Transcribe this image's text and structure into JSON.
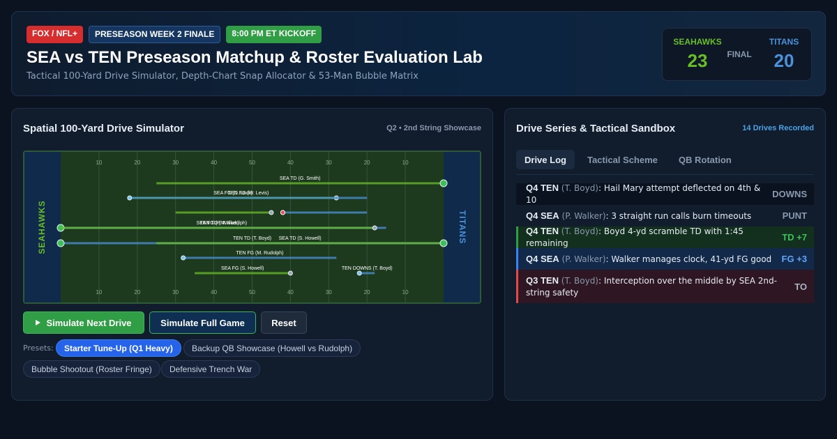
{
  "header": {
    "badges": [
      "FOX / NFL+",
      "PRESEASON WEEK 2 FINALE",
      "8:00 PM ET KICKOFF"
    ],
    "title": "SEA vs TEN Preseason Matchup & Roster Evaluation Lab",
    "subtitle": "Tactical 100-Yard Drive Simulator, Depth-Chart Snap Allocator & 53-Man Bubble Matrix"
  },
  "scoreboard": {
    "home_team": "SEAHAWKS",
    "home_score": "23",
    "status": "FINAL",
    "away_team": "TITANS",
    "away_score": "20",
    "home_color": "#69be28",
    "away_color": "#4b92db"
  },
  "simulator": {
    "title": "Spatial 100-Yard Drive Simulator",
    "meta": "Q2 • 2nd String Showcase",
    "left_endzone": "SEAHAWKS",
    "right_endzone": "TITANS",
    "yard_labels": [
      "10",
      "20",
      "30",
      "40",
      "50",
      "40",
      "30",
      "20",
      "10"
    ],
    "drives": [
      {
        "label": "SEA TD (G. Smith)",
        "start": 25,
        "end": 100,
        "team": "SEA"
      },
      {
        "label": "SEA FG (D. Lock)",
        "start": 18,
        "end": 72,
        "team": "SEA"
      },
      {
        "label": "TEN FG (W. Levis)",
        "start": 80,
        "end": 18,
        "team": "TEN"
      },
      {
        "label": "",
        "start": 30,
        "end": 55,
        "team": "SEA"
      },
      {
        "label": "",
        "start": 80,
        "end": 58,
        "team": "TEN"
      },
      {
        "label": "TEN TD (M. Rudolph)",
        "start": 85,
        "end": 0,
        "team": "TEN"
      },
      {
        "label": "SEA FG (P. Walker)",
        "start": 0,
        "end": 82,
        "team": "SEA"
      },
      {
        "label": "TEN TD (T. Boyd)",
        "start": 100,
        "end": 0,
        "team": "TEN"
      },
      {
        "label": "SEA TD (S. Howell)",
        "start": 25,
        "end": 100,
        "team": "SEA"
      },
      {
        "label": "TEN FG (M. Rudolph)",
        "start": 72,
        "end": 32,
        "team": "TEN"
      },
      {
        "label": "SEA FG (S. Howell)",
        "start": 35,
        "end": 60,
        "team": "SEA"
      },
      {
        "label": "TEN DOWNS (T. Boyd)",
        "start": 82,
        "end": 78,
        "team": "TEN"
      }
    ],
    "buttons": {
      "simulate_next": "Simulate Next Drive",
      "simulate_full": "Simulate Full Game",
      "reset": "Reset"
    },
    "presets_label": "Presets:",
    "presets": [
      "Starter Tune-Up (Q1 Heavy)",
      "Backup QB Showcase (Howell vs Rudolph)",
      "Bubble Shootout (Roster Fringe)",
      "Defensive Trench War"
    ]
  },
  "sandbox": {
    "title": "Drive Series & Tactical Sandbox",
    "meta": "14 Drives Recorded",
    "tabs": [
      "Drive Log",
      "Tactical Scheme",
      "QB Rotation"
    ],
    "log": [
      {
        "who": "Q4 TEN",
        "qb": "(T. Boyd)",
        "text": ": Hail Mary attempt deflected on 4th & 10",
        "result": "DOWNS",
        "kind": "dark"
      },
      {
        "who": "Q4 SEA",
        "qb": "(P. Walker)",
        "text": ": 3 straight run calls burn timeouts",
        "result": "PUNT",
        "kind": "plain"
      },
      {
        "who": "Q4 TEN",
        "qb": "(T. Boyd)",
        "text": ": Boyd 4-yd scramble TD with 1:45 remaining",
        "result": "TD +7",
        "kind": "td"
      },
      {
        "who": "Q4 SEA",
        "qb": "(P. Walker)",
        "text": ": Walker manages clock, 41-yd FG good",
        "result": "FG +3",
        "kind": "fg"
      },
      {
        "who": "Q3 TEN",
        "qb": "(T. Boyd)",
        "text": ": Interception over the middle by SEA 2nd-string safety",
        "result": "TO",
        "kind": "to"
      }
    ]
  }
}
